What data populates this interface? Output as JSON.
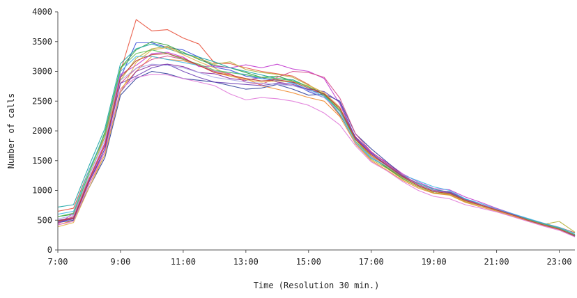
{
  "chart_data": {
    "type": "line",
    "xlabel": "Time (Resolution 30 min.)",
    "ylabel": "Number of calls",
    "x": [
      "7:00",
      "7:30",
      "8:00",
      "8:30",
      "9:00",
      "9:30",
      "10:00",
      "10:30",
      "11:00",
      "11:30",
      "12:00",
      "12:30",
      "13:00",
      "13:30",
      "14:00",
      "14:30",
      "15:00",
      "15:30",
      "16:00",
      "16:30",
      "17:00",
      "17:30",
      "18:00",
      "18:30",
      "19:00",
      "19:30",
      "20:00",
      "20:30",
      "21:00",
      "21:30",
      "22:00",
      "22:30",
      "23:00",
      "23:30"
    ],
    "x_ticks": [
      "7:00",
      "9:00",
      "11:00",
      "13:00",
      "15:00",
      "17:00",
      "19:00",
      "21:00",
      "23:00"
    ],
    "ylim": [
      0,
      4000
    ],
    "y_ticks": [
      0,
      500,
      1000,
      1500,
      2000,
      2500,
      3000,
      3500,
      4000
    ],
    "grid": false,
    "series": [
      {
        "color": "#e8503a",
        "values": [
          650,
          700,
          1350,
          1900,
          3000,
          3870,
          3680,
          3700,
          3560,
          3460,
          3140,
          3130,
          3060,
          3000,
          2960,
          2920,
          2780,
          2580,
          2260,
          1900,
          1580,
          1380,
          1220,
          1080,
          980,
          940,
          830,
          750,
          680,
          600,
          520,
          450,
          380,
          290
        ]
      },
      {
        "color": "#3b4fd8",
        "values": [
          480,
          520,
          1150,
          1700,
          2900,
          3480,
          3480,
          3400,
          3360,
          3240,
          3070,
          3020,
          2920,
          2880,
          2850,
          2810,
          2660,
          2560,
          2350,
          1880,
          1630,
          1420,
          1230,
          1080,
          980,
          950,
          820,
          740,
          660,
          590,
          510,
          430,
          360,
          250
        ]
      },
      {
        "color": "#2e9e3a",
        "values": [
          560,
          600,
          1300,
          1980,
          3060,
          3360,
          3500,
          3440,
          3320,
          3200,
          3100,
          3060,
          2980,
          2900,
          2920,
          2840,
          2740,
          2620,
          2330,
          1850,
          1560,
          1380,
          1200,
          1060,
          960,
          930,
          810,
          740,
          670,
          590,
          500,
          420,
          350,
          240
        ]
      },
      {
        "color": "#c23bd0",
        "values": [
          430,
          620,
          1200,
          1800,
          2950,
          3100,
          3300,
          3320,
          3240,
          3080,
          3090,
          3060,
          3110,
          3060,
          3120,
          3040,
          3000,
          2880,
          2450,
          1850,
          1640,
          1470,
          1280,
          1140,
          1030,
          1010,
          890,
          800,
          700,
          610,
          520,
          440,
          360,
          250
        ]
      },
      {
        "color": "#b6b03a",
        "values": [
          480,
          560,
          1250,
          1900,
          2850,
          3220,
          3380,
          3420,
          3300,
          3220,
          3120,
          3160,
          3030,
          2980,
          2950,
          2900,
          2770,
          2640,
          2350,
          1800,
          1520,
          1370,
          1190,
          1060,
          960,
          930,
          810,
          740,
          670,
          590,
          500,
          430,
          480,
          300
        ]
      },
      {
        "color": "#1aa5a5",
        "values": [
          720,
          760,
          1420,
          2040,
          3130,
          3380,
          3460,
          3380,
          3300,
          3240,
          3160,
          3060,
          3000,
          2940,
          2880,
          2860,
          2740,
          2600,
          2280,
          1800,
          1540,
          1400,
          1240,
          1120,
          1020,
          970,
          850,
          760,
          680,
          600,
          520,
          440,
          370,
          260
        ]
      },
      {
        "color": "#f08a2c",
        "values": [
          420,
          500,
          1100,
          1600,
          2700,
          3000,
          3250,
          3200,
          3180,
          3100,
          2980,
          2920,
          2880,
          2760,
          2700,
          2640,
          2560,
          2500,
          2240,
          1780,
          1500,
          1340,
          1170,
          1040,
          950,
          920,
          800,
          720,
          650,
          570,
          490,
          410,
          340,
          230
        ]
      },
      {
        "color": "#8b2fa0",
        "values": [
          500,
          540,
          1150,
          1650,
          2650,
          3000,
          3100,
          3120,
          3080,
          2980,
          2960,
          2880,
          2850,
          2900,
          2820,
          2780,
          2690,
          2620,
          2380,
          1900,
          1650,
          1450,
          1250,
          1100,
          1000,
          980,
          860,
          760,
          680,
          600,
          510,
          430,
          350,
          240
        ]
      },
      {
        "color": "#2f3f9a",
        "values": [
          460,
          500,
          1050,
          1550,
          2600,
          2880,
          3000,
          2960,
          2880,
          2850,
          2820,
          2760,
          2700,
          2720,
          2780,
          2700,
          2600,
          2620,
          2500,
          1950,
          1700,
          1480,
          1260,
          1100,
          980,
          960,
          840,
          760,
          670,
          590,
          500,
          420,
          350,
          230
        ]
      },
      {
        "color": "#3fb8e8",
        "values": [
          600,
          650,
          1350,
          1950,
          3000,
          3250,
          3250,
          3200,
          3150,
          3100,
          3000,
          2980,
          2950,
          2880,
          2860,
          2800,
          2700,
          2580,
          2320,
          1800,
          1540,
          1400,
          1260,
          1160,
          1060,
          1000,
          860,
          780,
          690,
          610,
          530,
          450,
          380,
          280
        ]
      },
      {
        "color": "#d64b8c",
        "values": [
          450,
          560,
          1200,
          1780,
          2800,
          3050,
          3200,
          3260,
          3200,
          3100,
          3000,
          2960,
          2820,
          2780,
          2900,
          3000,
          2980,
          2900,
          2550,
          1950,
          1650,
          1450,
          1260,
          1100,
          990,
          960,
          840,
          760,
          680,
          590,
          510,
          430,
          360,
          250
        ]
      },
      {
        "color": "#e07ad9",
        "values": [
          420,
          480,
          1100,
          1650,
          2700,
          2900,
          2950,
          2940,
          2880,
          2820,
          2760,
          2620,
          2520,
          2560,
          2540,
          2500,
          2430,
          2300,
          2100,
          1750,
          1480,
          1330,
          1150,
          1000,
          900,
          860,
          760,
          700,
          640,
          560,
          480,
          400,
          330,
          220
        ]
      },
      {
        "color": "#6b3fb5",
        "values": [
          470,
          520,
          1150,
          1700,
          2800,
          2920,
          3060,
          3120,
          3000,
          2900,
          2820,
          2800,
          2780,
          2760,
          2800,
          2760,
          2700,
          2660,
          2480,
          1880,
          1620,
          1430,
          1240,
          1080,
          990,
          960,
          830,
          750,
          670,
          590,
          500,
          420,
          350,
          240
        ]
      },
      {
        "color": "#e2b34a",
        "values": [
          390,
          460,
          1050,
          1600,
          2650,
          3150,
          3360,
          3400,
          3280,
          3160,
          3060,
          2920,
          2860,
          2820,
          2840,
          2820,
          2760,
          2640,
          2400,
          1850,
          1580,
          1420,
          1220,
          1080,
          980,
          940,
          820,
          740,
          660,
          580,
          500,
          420,
          350,
          240
        ]
      },
      {
        "color": "#5cc05a",
        "values": [
          560,
          620,
          1300,
          1950,
          3050,
          3300,
          3360,
          3300,
          3200,
          3120,
          3020,
          2980,
          2940,
          2900,
          2880,
          2840,
          2740,
          2600,
          2340,
          1820,
          1560,
          1400,
          1220,
          1090,
          990,
          950,
          830,
          750,
          670,
          590,
          510,
          430,
          360,
          250
        ]
      },
      {
        "color": "#a8a8e8",
        "values": [
          520,
          580,
          1250,
          1850,
          2850,
          3050,
          3120,
          3100,
          3060,
          2980,
          2900,
          2860,
          2820,
          2800,
          2780,
          2760,
          2680,
          2560,
          2320,
          1800,
          1560,
          1410,
          1230,
          1090,
          990,
          950,
          830,
          750,
          670,
          590,
          500,
          420,
          350,
          240
        ]
      },
      {
        "color": "#c0392b",
        "values": [
          490,
          530,
          1180,
          1750,
          2900,
          3180,
          3280,
          3300,
          3220,
          3100,
          2980,
          2940,
          2880,
          2840,
          2860,
          2820,
          2720,
          2620,
          2380,
          1860,
          1600,
          1420,
          1230,
          1080,
          980,
          950,
          830,
          750,
          670,
          590,
          500,
          420,
          350,
          240
        ]
      }
    ]
  }
}
